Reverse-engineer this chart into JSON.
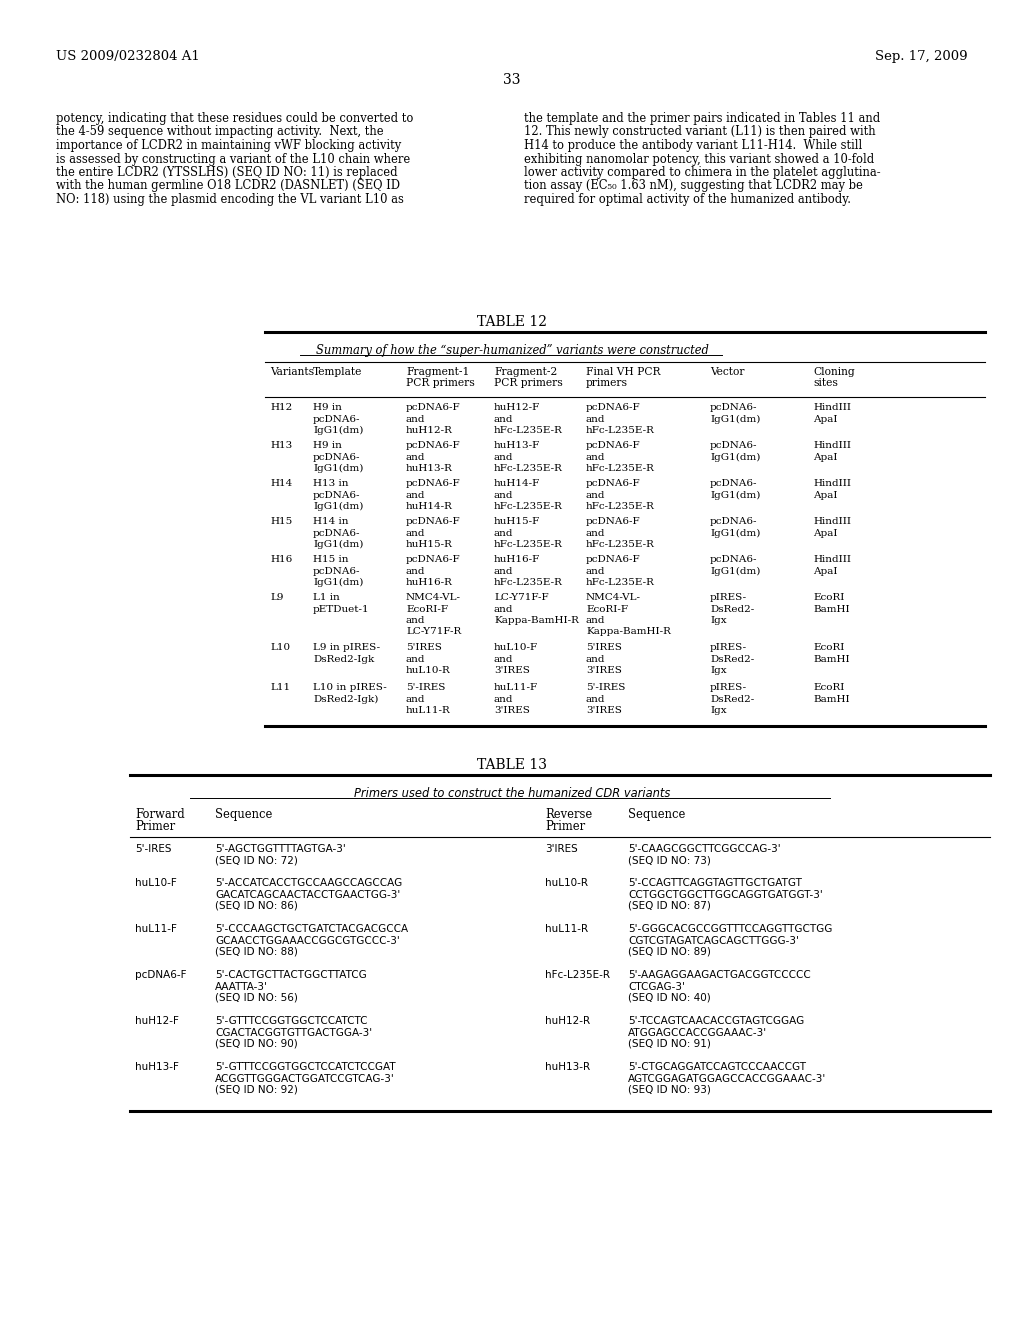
{
  "page_number": "33",
  "patent_number": "US 2009/0232804 A1",
  "patent_date": "Sep. 17, 2009",
  "body_text_left": [
    "potency, indicating that these residues could be converted to",
    "the 4-59 sequence without impacting activity.  Next, the",
    "importance of LCDR2 in maintaining vWF blocking activity",
    "is assessed by constructing a variant of the L10 chain where",
    "the entire LCDR2 (YTSSLHS) (SEQ ID NO: 11) is replaced",
    "with the human germline O18 LCDR2 (DASNLET) (SEQ ID",
    "NO: 118) using the plasmid encoding the VL variant L10 as"
  ],
  "body_text_right": [
    "the template and the primer pairs indicated in Tables 11 and",
    "12. This newly constructed variant (L11) is then paired with",
    "H14 to produce the antibody variant L11-H14.  While still",
    "exhibiting nanomolar potency, this variant showed a 10-fold",
    "lower activity compared to chimera in the platelet agglutina-",
    "tion assay (EC₅₀ 1.63 nM), suggesting that LCDR2 may be",
    "required for optimal activity of the humanized antibody."
  ],
  "table12_title": "TABLE 12",
  "table12_subtitle": "Summary of how the “super-humanized” variants were constructed",
  "table12_col_headers": [
    [
      "Variants",
      "Template",
      "Fragment-1",
      "Fragment-2",
      "Final VH PCR",
      "Vector",
      "Cloning"
    ],
    [
      "",
      "",
      "PCR primers",
      "PCR primers",
      "primers",
      "",
      "sites"
    ]
  ],
  "table12_rows": [
    [
      "H12",
      "H9 in\npcDNA6-\nIgG1(dm)",
      "pcDNA6-F\nand\nhuH12-R",
      "huH12-F\nand\nhFc-L235E-R",
      "pcDNA6-F\nand\nhFc-L235E-R",
      "pcDNA6-\nIgG1(dm)",
      "HindIII\nApaI"
    ],
    [
      "H13",
      "H9 in\npcDNA6-\nIgG1(dm)",
      "pcDNA6-F\nand\nhuH13-R",
      "huH13-F\nand\nhFc-L235E-R",
      "pcDNA6-F\nand\nhFc-L235E-R",
      "pcDNA6-\nIgG1(dm)",
      "HindIII\nApaI"
    ],
    [
      "H14",
      "H13 in\npcDNA6-\nIgG1(dm)",
      "pcDNA6-F\nand\nhuH14-R",
      "huH14-F\nand\nhFc-L235E-R",
      "pcDNA6-F\nand\nhFc-L235E-R",
      "pcDNA6-\nIgG1(dm)",
      "HindIII\nApaI"
    ],
    [
      "H15",
      "H14 in\npcDNA6-\nIgG1(dm)",
      "pcDNA6-F\nand\nhuH15-R",
      "huH15-F\nand\nhFc-L235E-R",
      "pcDNA6-F\nand\nhFc-L235E-R",
      "pcDNA6-\nIgG1(dm)",
      "HindIII\nApaI"
    ],
    [
      "H16",
      "H15 in\npcDNA6-\nIgG1(dm)",
      "pcDNA6-F\nand\nhuH16-R",
      "huH16-F\nand\nhFc-L235E-R",
      "pcDNA6-F\nand\nhFc-L235E-R",
      "pcDNA6-\nIgG1(dm)",
      "HindIII\nApaI"
    ],
    [
      "L9",
      "L1 in\npETDuet-1",
      "NMC4-VL-\nEcoRI-F\nand\nLC-Y71F-R",
      "LC-Y71F-F\nand\nKappa-BamHI-R",
      "NMC4-VL-\nEcoRI-F\nand\nKappa-BamHI-R",
      "pIRES-\nDsRed2-\nIgx",
      "EcoRI\nBamHI"
    ],
    [
      "L10",
      "L9 in pIRES-\nDsRed2-Igk",
      "5'IRES\nand\nhuL10-R",
      "huL10-F\nand\n3'IRES",
      "5'IRES\nand\n3'IRES",
      "pIRES-\nDsRed2-\nIgx",
      "EcoRI\nBamHI"
    ],
    [
      "L11",
      "L10 in pIRES-\nDsRed2-Igk)",
      "5'-IRES\nand\nhuL11-R",
      "huL11-F\nand\n3'IRES",
      "5'-IRES\nand\n3'IRES",
      "pIRES-\nDsRed2-\nIgx",
      "EcoRI\nBamHI"
    ]
  ],
  "table12_row_heights": [
    38,
    38,
    38,
    38,
    38,
    50,
    40,
    40
  ],
  "table13_title": "TABLE 13",
  "table13_subtitle": "Primers used to construct the humanized CDR variants",
  "table13_col_headers": [
    [
      "Forward",
      "Sequence",
      "Reverse",
      "Sequence"
    ],
    [
      "Primer",
      "",
      "Primer",
      ""
    ]
  ],
  "table13_rows": [
    [
      "5'-IRES",
      "5'-AGCTGGTTTTAGTGA-3'\n(SEQ ID NO: 72)",
      "3'IRES",
      "5'-CAAGCGGCTTCGGCCAG-3'\n(SEQ ID NO: 73)"
    ],
    [
      "huL10-F",
      "5'-ACCATCACCTGCCAAGCCAGCCAG\nGACATCAGCAACTACCTGAACTGG-3'\n(SEQ ID NO: 86)",
      "huL10-R",
      "5'-CCAGTTCAGGTAGTTGCTGATGT\nCCTGGCTGGCTTGGCAGGTGATGGT-3'\n(SEQ ID NO: 87)"
    ],
    [
      "huL11-F",
      "5'-CCCAAGCTGCTGATCTACGACGCCA\nGCAACCTGGAAACCGGCGTGCCC-3'\n(SEQ ID NO: 88)",
      "huL11-R",
      "5'-GGGCACGCCGGTTTCCAGGTTGCTGG\nCGTCGTAGATCAGCAGCTTGGG-3'\n(SEQ ID NO: 89)"
    ],
    [
      "pcDNA6-F",
      "5'-CACTGCTTACTGGCTTATCG\nAAATTA-3'\n(SEQ ID NO: 56)",
      "hFc-L235E-R",
      "5'-AAGAGGAAGACTGACGGTCCCCC\nCTCGAG-3'\n(SEQ ID NO: 40)"
    ],
    [
      "huH12-F",
      "5'-GTTTCCGGTGGCTCCATCTC\nCGACTACGGTGTTGACTGGA-3'\n(SEQ ID NO: 90)",
      "huH12-R",
      "5'-TCCAGTCAACACCGTAGTCGGAG\nATGGAGCCACCGGAAAC-3'\n(SEQ ID NO: 91)"
    ],
    [
      "huH13-F",
      "5'-GTTTCCGGTGGCTCCATCTCCGAT\nACGGTTGGGACTGGATCCGTCAG-3'\n(SEQ ID NO: 92)",
      "huH13-R",
      "5'-CTGCAGGATCCAGTCCCAACCGT\nAGTCGGAGATGGAGCCACCGGAAAC-3'\n(SEQ ID NO: 93)"
    ]
  ],
  "table13_row_heights": [
    34,
    46,
    46,
    46,
    46,
    46
  ],
  "background_color": "#ffffff"
}
